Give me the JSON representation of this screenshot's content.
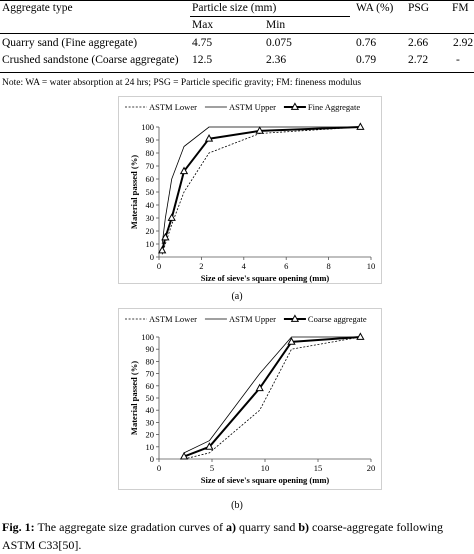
{
  "table": {
    "headers": {
      "aggregate_type": "Aggregate type",
      "particle_size": "Particle size (mm)",
      "max": "Max",
      "min": "Min",
      "wa": "WA (%)",
      "psg": "PSG",
      "fm": "FM"
    },
    "rows": [
      {
        "type": "Quarry sand (Fine aggregate)",
        "max": "4.75",
        "min": "0.075",
        "wa": "0.76",
        "psg": "2.66",
        "fm": "2.92"
      },
      {
        "type": "Crushed sandstone (Coarse aggregate)",
        "max": "12.5",
        "min": "2.36",
        "wa": "0.79",
        "psg": "2.72",
        "fm": "-"
      }
    ],
    "note": "Note: WA = water absorption at 24 hrs; PSG = Particle specific gravity; FM: fineness modulus"
  },
  "chart_data": [
    {
      "type": "line",
      "xlabel": "Size of sieve's square opening (mm)",
      "ylabel": "Material passed (%)",
      "xlim": [
        0,
        10
      ],
      "ylim": [
        0,
        100
      ],
      "xticks": [
        0,
        2,
        4,
        6,
        8,
        10
      ],
      "yticks": [
        0,
        10,
        20,
        30,
        40,
        50,
        60,
        70,
        80,
        90,
        100
      ],
      "grid": false,
      "legend_position": "top",
      "sublabel": "(a)",
      "series": [
        {
          "name": "ASTM Lower",
          "style": "dashed",
          "marker": "none",
          "x": [
            0.15,
            0.3,
            0.6,
            1.18,
            2.36,
            4.75,
            9.5
          ],
          "y": [
            2,
            10,
            25,
            50,
            80,
            95,
            100
          ]
        },
        {
          "name": "ASTM Upper",
          "style": "solid-thin",
          "marker": "none",
          "x": [
            0.15,
            0.3,
            0.6,
            1.18,
            2.36,
            4.75,
            9.5
          ],
          "y": [
            10,
            30,
            60,
            85,
            100,
            100,
            100
          ]
        },
        {
          "name": "Fine Aggregate",
          "style": "solid-thick",
          "marker": "triangle",
          "x": [
            0.15,
            0.3,
            0.6,
            1.18,
            2.36,
            4.75,
            9.5
          ],
          "y": [
            5,
            15,
            30,
            66,
            91,
            97,
            100
          ]
        }
      ]
    },
    {
      "type": "line",
      "xlabel": "Size of sieve's square opening (mm)",
      "ylabel": "Material passed (%)",
      "xlim": [
        0,
        20
      ],
      "ylim": [
        0,
        100
      ],
      "xticks": [
        0,
        5,
        10,
        15,
        20
      ],
      "yticks": [
        0,
        10,
        20,
        30,
        40,
        50,
        60,
        70,
        80,
        90,
        100
      ],
      "grid": false,
      "legend_position": "top",
      "sublabel": "(b)",
      "series": [
        {
          "name": "ASTM Lower",
          "style": "dashed",
          "marker": "none",
          "x": [
            2.36,
            4.75,
            9.5,
            12.5,
            19
          ],
          "y": [
            0,
            5,
            40,
            90,
            100
          ]
        },
        {
          "name": "ASTM Upper",
          "style": "solid-thin",
          "marker": "none",
          "x": [
            2.36,
            4.75,
            9.5,
            12.5,
            19
          ],
          "y": [
            5,
            15,
            70,
            100,
            100
          ]
        },
        {
          "name": "Coarse aggregate",
          "style": "solid-thick",
          "marker": "triangle",
          "x": [
            2.36,
            4.75,
            9.5,
            12.5,
            19
          ],
          "y": [
            2,
            10,
            58,
            96,
            100
          ]
        }
      ]
    }
  ],
  "caption": {
    "fig_label": "Fig. 1:",
    "text_1": " The aggregate size gradation curves of ",
    "a_label": "a)",
    "text_2": " quarry sand ",
    "b_label": "b)",
    "text_3": " coarse-aggregate following ASTM C33[50]."
  }
}
